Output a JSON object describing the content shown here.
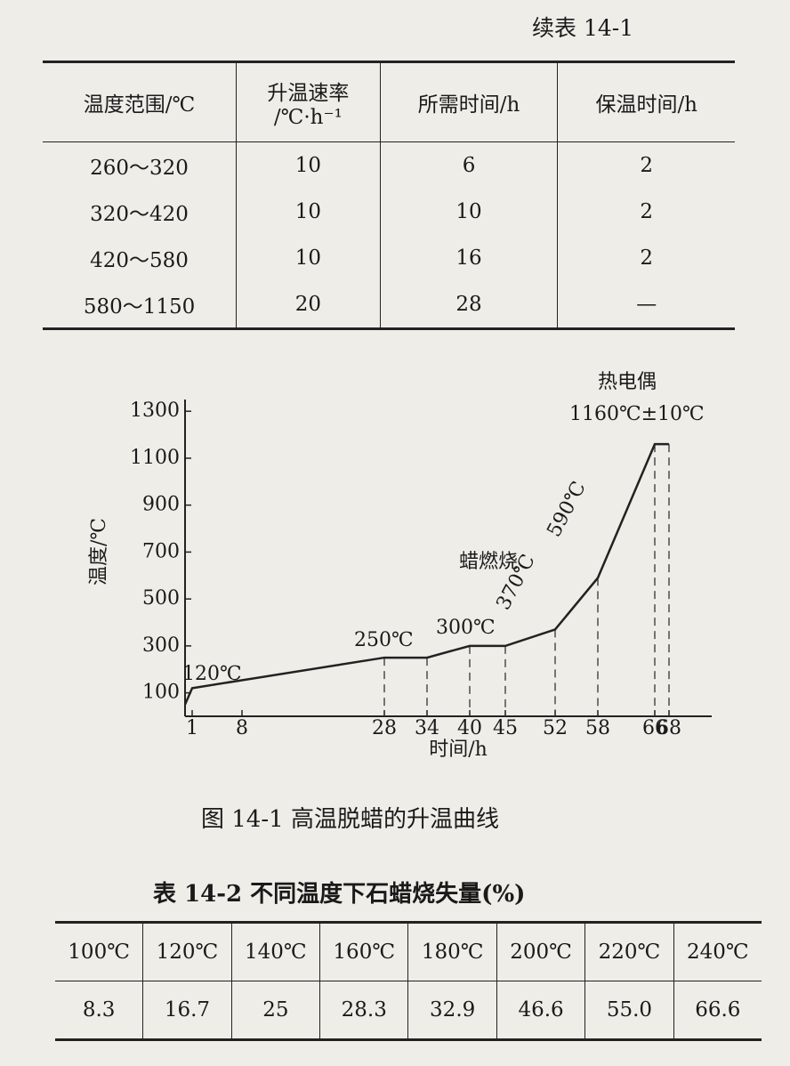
{
  "continued_label": "续表 14-1",
  "table_14_1": {
    "header": [
      "温度范围/℃",
      [
        "升温速率",
        "/℃·h⁻¹"
      ],
      "所需时间/h",
      "保温时间/h"
    ],
    "rows": [
      [
        "260～320",
        "10",
        "6",
        "2"
      ],
      [
        "320～420",
        "10",
        "10",
        "2"
      ],
      [
        "420～580",
        "10",
        "16",
        "2"
      ],
      [
        "580～1150",
        "20",
        "28",
        "—"
      ]
    ]
  },
  "chart_data": {
    "type": "line",
    "x_label": "时间/h",
    "y_label": "温度/℃",
    "x": [
      0,
      1,
      28,
      34,
      40,
      45,
      52,
      58,
      66,
      68
    ],
    "values": [
      50,
      120,
      250,
      250,
      300,
      300,
      370,
      590,
      1160,
      1160
    ],
    "color": "#222222",
    "xlim": [
      0,
      74
    ],
    "xticks": [
      1,
      8,
      28,
      34,
      40,
      45,
      52,
      58,
      66,
      68
    ],
    "ylim": [
      0,
      1350
    ],
    "yticks": [
      100,
      300,
      500,
      700,
      900,
      1100,
      1300
    ],
    "grid": false,
    "annotations": [
      "120℃",
      "250℃",
      "300℃",
      "370℃",
      "590℃",
      "蜡燃烧",
      "热电偶",
      "1160℃±10℃"
    ]
  },
  "figure_caption": "图 14-1 高温脱蜡的升温曲线",
  "table_14_2": {
    "title": "表 14-2 不同温度下石蜡烧失量(%)",
    "header": [
      "100℃",
      "120℃",
      "140℃",
      "160℃",
      "180℃",
      "200℃",
      "220℃",
      "240℃"
    ],
    "rows": [
      [
        "8.3",
        "16.7",
        "25",
        "28.3",
        "32.9",
        "46.6",
        "55.0",
        "66.6"
      ]
    ]
  }
}
